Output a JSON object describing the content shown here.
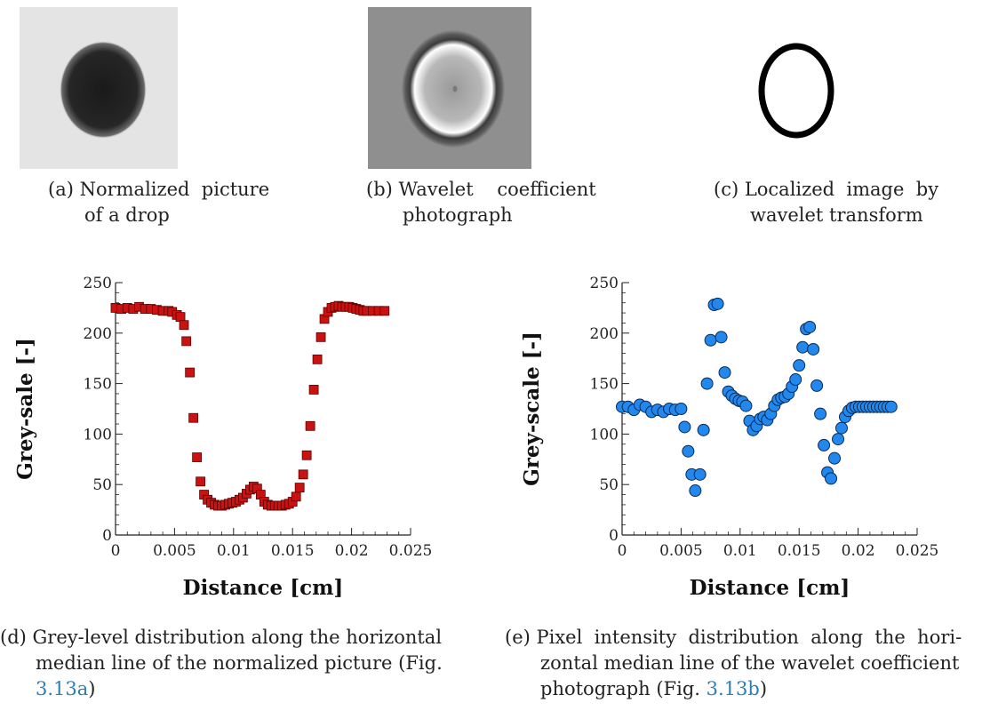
{
  "panels": {
    "a": {
      "caption_line1": "(a) Normalized  picture",
      "caption_line2": "of a drop"
    },
    "b": {
      "caption_line1": "(b) Wavelet    coefficient",
      "caption_line2": "photograph"
    },
    "c": {
      "caption_line1": "(c) Localized  image  by",
      "caption_line2": "wavelet transform"
    },
    "d": {
      "caption_line1": "(d) Grey-level distribution along the horizontal",
      "caption_line2": "median line of the normalized picture (Fig.",
      "caption_ref": "3.13a",
      "caption_close": ")"
    },
    "e": {
      "caption_line1": "(e) Pixel  intensity  distribution  along  the  hori-",
      "caption_line2": "zontal median line of the wavelet coefficient",
      "caption_line3_pre": "photograph (Fig. ",
      "caption_ref": "3.13b",
      "caption_close": ")"
    }
  },
  "colors": {
    "series_d": "#cc1111",
    "series_e": "#2288ee",
    "ref_link": "#2a7fb8"
  },
  "chart_data": [
    {
      "type": "scatter",
      "xlabel": "Distance [cm]",
      "ylabel": "Grey-sale [-]",
      "xlim": [
        0,
        0.025
      ],
      "ylim": [
        0,
        250
      ],
      "xticks": [
        "0",
        "0.005",
        "0.01",
        "0.015",
        "0.02",
        "0.025"
      ],
      "yticks": [
        "0",
        "50",
        "100",
        "150",
        "200",
        "250"
      ],
      "marker": "square",
      "series": [
        {
          "color": "#cc1111",
          "x": [
            0,
            0.0005,
            0.001,
            0.0015,
            0.002,
            0.0025,
            0.003,
            0.0035,
            0.004,
            0.0045,
            0.0048,
            0.0052,
            0.0055,
            0.0058,
            0.006,
            0.0063,
            0.0066,
            0.0069,
            0.0072,
            0.0075,
            0.0078,
            0.0081,
            0.0084,
            0.0087,
            0.009,
            0.0093,
            0.0096,
            0.0099,
            0.0102,
            0.0105,
            0.0108,
            0.0111,
            0.0114,
            0.0117,
            0.012,
            0.0123,
            0.0126,
            0.0129,
            0.0132,
            0.0135,
            0.0138,
            0.0141,
            0.0144,
            0.0147,
            0.015,
            0.0153,
            0.0156,
            0.0159,
            0.0162,
            0.0165,
            0.0168,
            0.0171,
            0.0174,
            0.0177,
            0.018,
            0.0183,
            0.0186,
            0.0189,
            0.0192,
            0.0195,
            0.0198,
            0.0201,
            0.0204,
            0.0207,
            0.021,
            0.0213,
            0.0218,
            0.0223,
            0.0228
          ],
          "y": [
            225,
            224,
            225,
            224,
            226,
            224,
            224,
            223,
            222,
            222,
            221,
            218,
            216,
            208,
            192,
            161,
            116,
            77,
            53,
            40,
            35,
            32,
            30,
            29,
            29,
            30,
            31,
            32,
            33,
            35,
            37,
            41,
            45,
            48,
            46,
            40,
            33,
            30,
            29,
            29,
            29,
            29,
            30,
            31,
            33,
            38,
            47,
            60,
            79,
            108,
            144,
            174,
            196,
            214,
            221,
            225,
            226,
            227,
            226,
            226,
            226,
            225,
            224,
            223,
            222,
            222,
            222,
            222,
            222
          ]
        }
      ]
    },
    {
      "type": "scatter",
      "xlabel": "Distance [cm]",
      "ylabel": "Grey-scale [-]",
      "xlim": [
        0,
        0.025
      ],
      "ylim": [
        0,
        250
      ],
      "xticks": [
        "0",
        "0.005",
        "0.01",
        "0.015",
        "0.02",
        "0.025"
      ],
      "yticks": [
        "0",
        "50",
        "100",
        "150",
        "200",
        "250"
      ],
      "marker": "circle",
      "series": [
        {
          "color": "#2288ee",
          "x": [
            0,
            0.0005,
            0.001,
            0.0015,
            0.002,
            0.0025,
            0.003,
            0.0035,
            0.004,
            0.0045,
            0.005,
            0.0053,
            0.0056,
            0.0059,
            0.0062,
            0.0066,
            0.0069,
            0.0072,
            0.0075,
            0.0078,
            0.0081,
            0.0084,
            0.0087,
            0.009,
            0.0093,
            0.0096,
            0.0099,
            0.0102,
            0.0105,
            0.0108,
            0.0111,
            0.0114,
            0.0117,
            0.012,
            0.0123,
            0.0126,
            0.0129,
            0.0132,
            0.0135,
            0.0138,
            0.0141,
            0.0144,
            0.0147,
            0.015,
            0.0153,
            0.0156,
            0.0159,
            0.0162,
            0.0165,
            0.0168,
            0.0171,
            0.0174,
            0.0177,
            0.018,
            0.0183,
            0.0186,
            0.0189,
            0.0192,
            0.0195,
            0.0198,
            0.0201,
            0.0204,
            0.0207,
            0.021,
            0.0213,
            0.0216,
            0.0219,
            0.0222,
            0.0225,
            0.0228
          ],
          "y": [
            127,
            127,
            124,
            129,
            127,
            122,
            124,
            122,
            125,
            124,
            125,
            107,
            83,
            60,
            44,
            60,
            104,
            150,
            193,
            228,
            229,
            196,
            161,
            142,
            138,
            135,
            133,
            132,
            128,
            113,
            104,
            108,
            115,
            117,
            114,
            120,
            128,
            134,
            136,
            137,
            140,
            147,
            154,
            168,
            186,
            204,
            206,
            184,
            148,
            120,
            89,
            62,
            56,
            76,
            95,
            106,
            117,
            123,
            126,
            127,
            127,
            127,
            127,
            127,
            127,
            127,
            127,
            127,
            127,
            127
          ]
        }
      ]
    }
  ]
}
